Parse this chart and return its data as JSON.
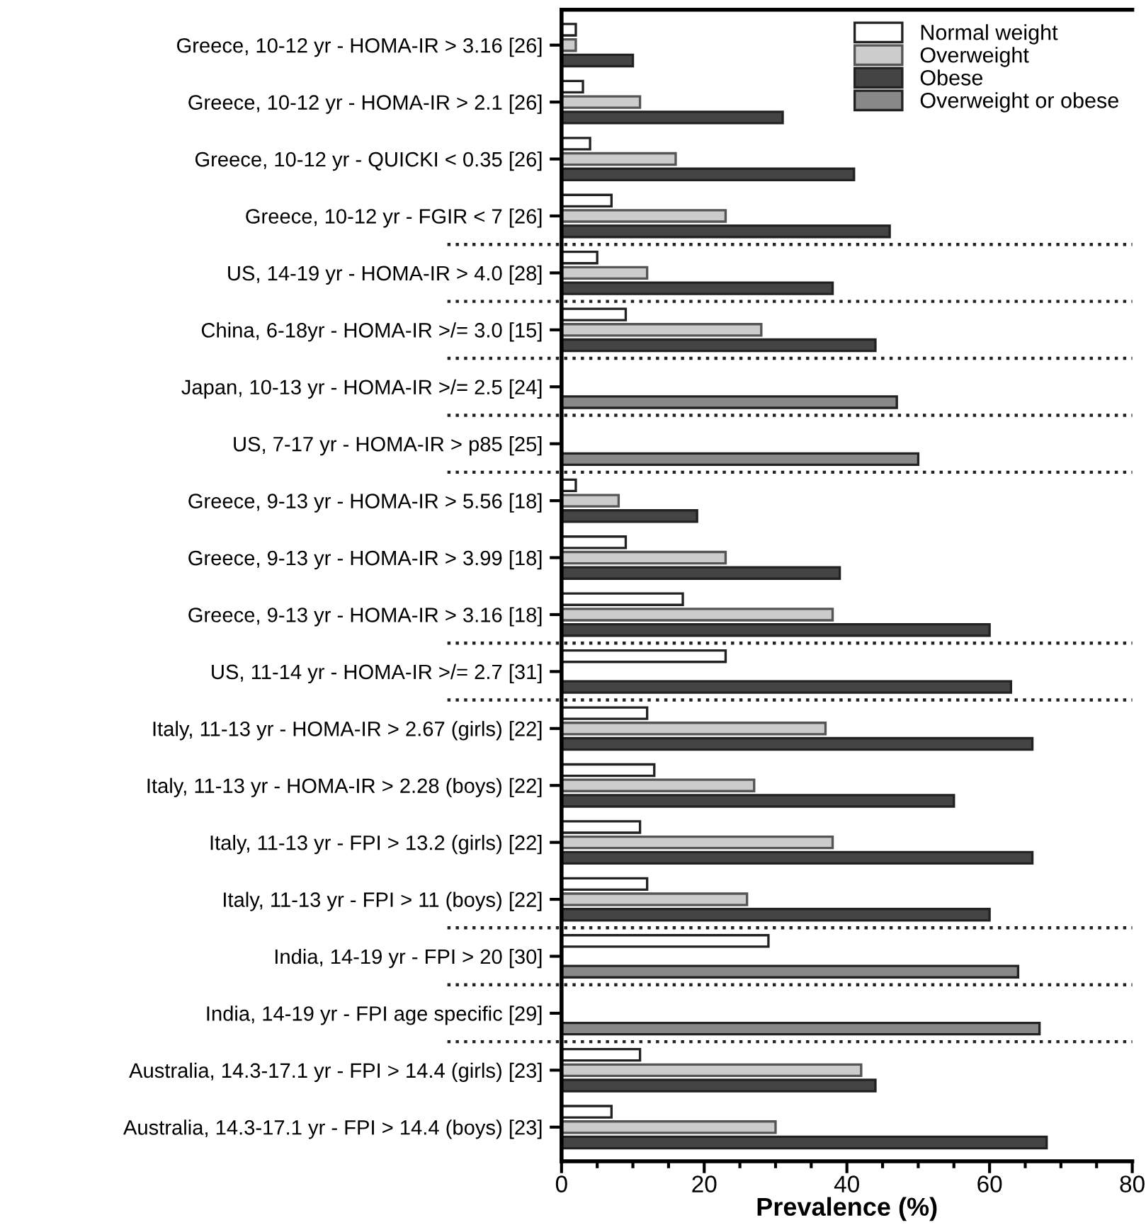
{
  "chart_data": {
    "type": "bar",
    "orientation": "horizontal",
    "xlabel": "Prevalence (%)",
    "categories": [
      "Greece, 10-12 yr - HOMA-IR > 3.16 [26]",
      "Greece, 10-12 yr - HOMA-IR > 2.1 [26]",
      "Greece, 10-12 yr - QUICKI < 0.35 [26]",
      "Greece, 10-12 yr - FGIR < 7 [26]",
      "US, 14-19 yr - HOMA-IR > 4.0 [28]",
      "China, 6-18yr - HOMA-IR >/= 3.0 [15]",
      "Japan, 10-13 yr - HOMA-IR >/= 2.5 [24]",
      "US, 7-17 yr - HOMA-IR > p85 [25]",
      "Greece, 9-13 yr - HOMA-IR > 5.56 [18]",
      "Greece, 9-13 yr - HOMA-IR > 3.99 [18]",
      "Greece, 9-13 yr - HOMA-IR > 3.16 [18]",
      "US, 11-14 yr - HOMA-IR >/= 2.7 [31]",
      "Italy, 11-13 yr - HOMA-IR > 2.67 (girls) [22]",
      "Italy, 11-13 yr - HOMA-IR > 2.28 (boys) [22]",
      "Italy, 11-13 yr - FPI > 13.2 (girls) [22]",
      "Italy, 11-13 yr - FPI > 11 (boys) [22]",
      "India, 14-19 yr - FPI > 20 [30]",
      "India, 14-19 yr - FPI age specific [29]",
      "Australia, 14.3-17.1 yr - FPI > 14.4 (girls) [23]",
      "Australia, 14.3-17.1 yr - FPI > 14.4 (boys) [23]"
    ],
    "series": [
      {
        "name": "Normal weight",
        "color": "#ffffff",
        "values": [
          2,
          3,
          4,
          7,
          5,
          9,
          null,
          null,
          2,
          9,
          17,
          23,
          12,
          13,
          11,
          12,
          29,
          null,
          11,
          7
        ]
      },
      {
        "name": "Overweight",
        "color": "#cccccc",
        "values": [
          2,
          11,
          16,
          23,
          12,
          28,
          null,
          null,
          8,
          23,
          38,
          null,
          37,
          27,
          38,
          26,
          null,
          null,
          42,
          30
        ]
      },
      {
        "name": "Obese",
        "color": "#444444",
        "values": [
          10,
          31,
          41,
          46,
          38,
          44,
          null,
          null,
          19,
          39,
          60,
          63,
          66,
          55,
          66,
          60,
          null,
          null,
          44,
          68
        ]
      },
      {
        "name": "Overweight or obese",
        "color": "#888888",
        "values": [
          null,
          null,
          null,
          null,
          null,
          null,
          47,
          50,
          null,
          null,
          null,
          null,
          null,
          null,
          null,
          null,
          64,
          67,
          null,
          null
        ]
      }
    ],
    "xlim": [
      0,
      80
    ],
    "xticks": [
      0,
      {
        "value": 5,
        "label": null
      },
      {
        "value": 10,
        "label": null
      },
      {
        "value": 15,
        "label": null
      },
      20,
      {
        "value": 25,
        "label": null
      },
      {
        "value": 30,
        "label": null
      },
      {
        "value": 35,
        "label": null
      },
      40,
      {
        "value": 45,
        "label": null
      },
      {
        "value": 50,
        "label": null
      },
      {
        "value": 55,
        "label": null
      },
      60,
      {
        "value": 65,
        "label": null
      },
      {
        "value": 70,
        "label": null
      },
      {
        "value": 75,
        "label": null
      },
      80
    ],
    "grid": false,
    "legend": "top right"
  }
}
